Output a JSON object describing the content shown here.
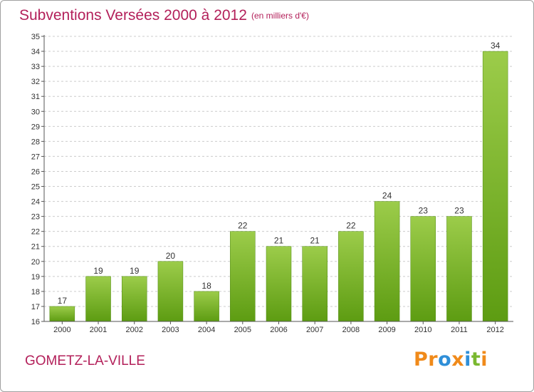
{
  "header": {
    "title": "Subventions Versées 2000 à 2012",
    "unit": "(en milliers d'€)"
  },
  "footer": {
    "commune": "GOMETZ-LA-VILLE",
    "logo": [
      "P",
      "r",
      "o",
      "x",
      "i",
      "t",
      "i"
    ]
  },
  "colors": {
    "title": "#b3205a",
    "bar_top": "#9ccc4a",
    "bar_bottom": "#5d9c12",
    "grid": "#cccccc",
    "logo": [
      "#f08a1a",
      "#f08a1a",
      "#2f8fd8",
      "#f08a1a",
      "#2f8fd8",
      "#7ab82f",
      "#f08a1a"
    ]
  },
  "chart_data": {
    "type": "bar",
    "title": "Subventions Versées 2000 à 2012",
    "subtitle": "(en milliers d'€)",
    "categories": [
      "2000",
      "2001",
      "2002",
      "2003",
      "2004",
      "2005",
      "2006",
      "2007",
      "2008",
      "2009",
      "2010",
      "2011",
      "2012"
    ],
    "values": [
      17,
      19,
      19,
      20,
      18,
      22,
      21,
      21,
      22,
      24,
      23,
      23,
      34
    ],
    "ylim": [
      16,
      35
    ],
    "yticks": [
      16,
      17,
      18,
      19,
      20,
      21,
      22,
      23,
      24,
      25,
      26,
      27,
      28,
      29,
      30,
      31,
      32,
      33,
      34,
      35
    ],
    "grid": "horizontal dashed",
    "xlabel": "",
    "ylabel": ""
  }
}
